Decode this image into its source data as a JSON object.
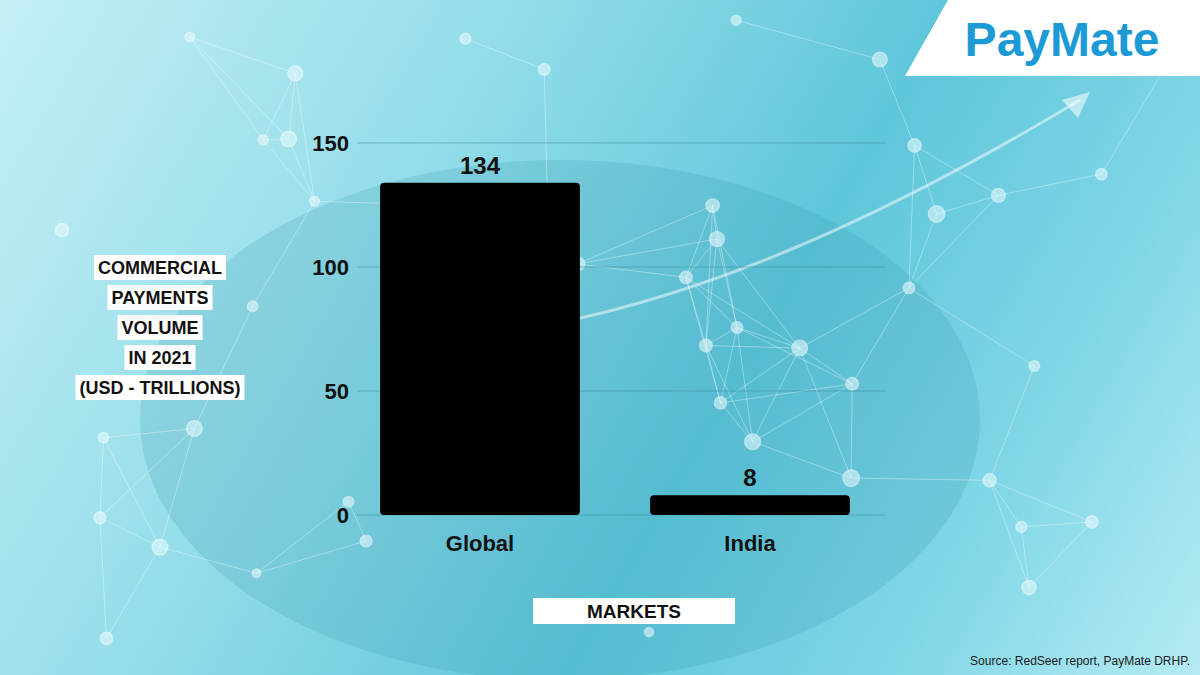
{
  "chart_data": {
    "type": "bar",
    "xlabel": "MARKETS",
    "ylabel": "COMMERCIAL PAYMENTS VOLUME IN 2021 (USD - TRILLIONS)",
    "categories": [
      "Global",
      "India"
    ],
    "values": [
      134,
      8
    ],
    "color": "#000000",
    "ylim": [
      0,
      150
    ],
    "yticks": [
      0,
      50,
      100,
      150
    ],
    "grid": true,
    "data_labels": true,
    "annotations": [
      "PayMate",
      "Source: RedSeer report, PayMate DRHP."
    ]
  }
}
